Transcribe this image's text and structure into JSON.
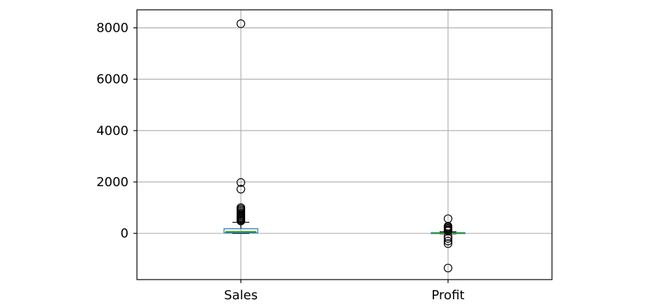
{
  "chart_data": {
    "type": "box",
    "grid": true,
    "ylim": [
      -1800,
      8700
    ],
    "yticks": [
      0,
      2000,
      4000,
      6000,
      8000
    ],
    "categories": [
      "Sales",
      "Profit"
    ],
    "series": [
      {
        "category": "Sales",
        "whisker_low": 0,
        "q1": 20,
        "median": 60,
        "q3": 180,
        "whisker_high": 430,
        "outliers": [
          8160,
          1980,
          1720,
          1000,
          950,
          900,
          850,
          800,
          760,
          720,
          680,
          640,
          600,
          560,
          520,
          480
        ]
      },
      {
        "category": "Profit",
        "whisker_low": -20,
        "q1": 0,
        "median": 5,
        "q3": 30,
        "whisker_high": 60,
        "outliers": [
          570,
          280,
          240,
          200,
          160,
          120,
          90,
          -120,
          -200,
          -300,
          -400,
          -1350
        ]
      }
    ],
    "colors": {
      "box": "#1f77b4",
      "median": "#2ca02c",
      "whisker": "#000000",
      "grid": "#b0b0b0"
    }
  }
}
